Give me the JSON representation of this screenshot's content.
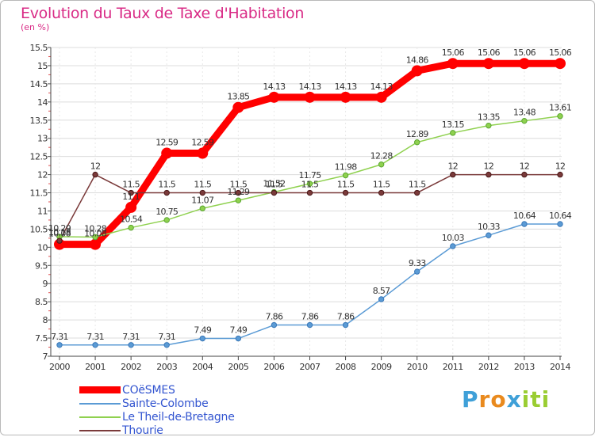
{
  "title": "Evolution du Taux de Taxe d'Habitation",
  "unit": "(en %)",
  "brand": {
    "letters": [
      "P",
      "r",
      "o",
      "x",
      "i",
      "t",
      "i"
    ],
    "colors": [
      "#3fa0d8",
      "#e98a1e",
      "#e98a1e",
      "#3fa0d8",
      "#9acd32",
      "#9acd32",
      "#9acd32"
    ]
  },
  "chart_data": {
    "type": "line",
    "title": "Evolution du Taux de Taxe d'Habitation",
    "ylabel": "(en %)",
    "xlabel": "",
    "x": [
      "2000",
      "2001",
      "2002",
      "2003",
      "2004",
      "2005",
      "2006",
      "2007",
      "2008",
      "2009",
      "2010",
      "2011",
      "2012",
      "2013",
      "2014"
    ],
    "ylim": [
      7,
      15.5
    ],
    "yticks": [
      "7",
      "7.5",
      "8",
      "8.5",
      "9",
      "9.5",
      "10",
      "10.5",
      "11",
      "11.5",
      "12",
      "12.5",
      "13",
      "13.5",
      "14",
      "14.5",
      "15",
      "15.5"
    ],
    "grid": "horizontal",
    "legend_position": "bottom-left",
    "series": [
      {
        "name": "COëSMES",
        "color": "#ff0000",
        "values": [
          10.08,
          10.08,
          11.1,
          12.59,
          12.59,
          13.85,
          14.13,
          14.13,
          14.13,
          14.13,
          14.86,
          15.06,
          15.06,
          15.06,
          15.06
        ],
        "labels": [
          "10.08",
          "10.08",
          "11.1",
          "12.59",
          "12.59",
          "13.85",
          "14.13",
          "14.13",
          "14.13",
          "14.13",
          "14.86",
          "15.06",
          "15.06",
          "15.06",
          "15.06"
        ]
      },
      {
        "name": "Sainte-Colombe",
        "color": "#5b9bd5",
        "values": [
          7.31,
          7.31,
          7.31,
          7.31,
          7.49,
          7.49,
          7.86,
          7.86,
          7.86,
          8.57,
          9.33,
          10.03,
          10.33,
          10.64,
          10.64
        ],
        "labels": [
          "7.31",
          "7.31",
          "7.31",
          "7.31",
          "7.49",
          "7.49",
          "7.86",
          "7.86",
          "7.86",
          "8.57",
          "9.33",
          "10.03",
          "10.33",
          "10.64",
          "10.64"
        ]
      },
      {
        "name": "Le Theil-de-Bretagne",
        "color": "#8fd14f",
        "values": [
          10.29,
          10.28,
          10.54,
          10.75,
          11.07,
          11.29,
          11.52,
          11.75,
          11.98,
          12.28,
          12.89,
          13.15,
          13.35,
          13.48,
          13.61
        ],
        "labels": [
          "10.29",
          "10.28",
          "10.54",
          "10.75",
          "11.07",
          "11.29",
          "11.52",
          "11.75",
          "11.98",
          "12.28",
          "12.89",
          "13.15",
          "13.35",
          "13.48",
          "13.61"
        ]
      },
      {
        "name": "Thourie",
        "color": "#7a3a3a",
        "values": [
          10.18,
          12,
          11.5,
          11.5,
          11.5,
          11.5,
          11.5,
          11.5,
          11.5,
          11.5,
          11.5,
          12,
          12,
          12,
          12
        ],
        "labels": [
          "10.18",
          "12",
          "11.5",
          "11.5",
          "11.5",
          "11.5",
          "11.5",
          "11.5",
          "11.5",
          "11.5",
          "11.5",
          "12",
          "12",
          "12",
          "12"
        ]
      }
    ]
  }
}
